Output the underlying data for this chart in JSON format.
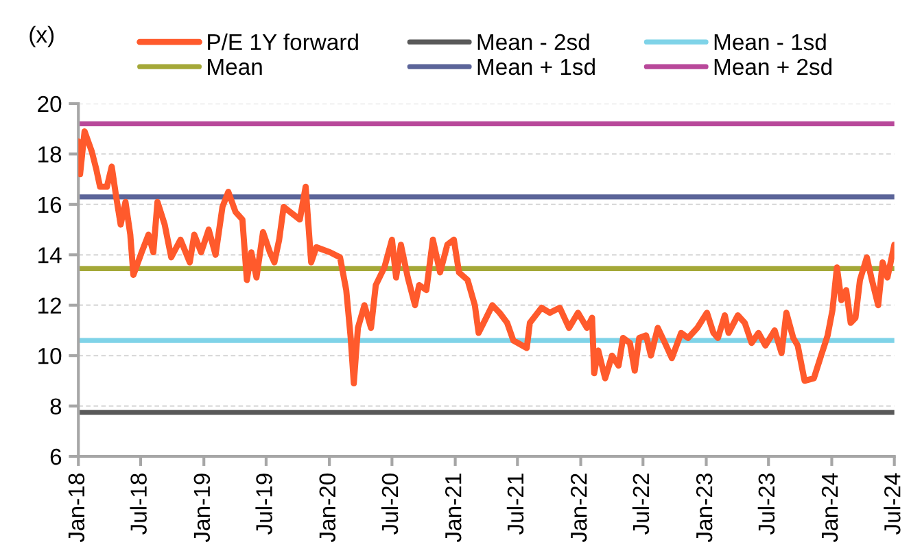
{
  "chart_data": {
    "type": "line",
    "ylabel": "(x)",
    "xlim": [
      "2018-01-01",
      "2024-07-01"
    ],
    "xticks": [
      {
        "value": "2018-01-01",
        "label": "Jan-18"
      },
      {
        "value": "2018-07-01",
        "label": "Jul-18"
      },
      {
        "value": "2019-01-01",
        "label": "Jan-19"
      },
      {
        "value": "2019-07-01",
        "label": "Jul-19"
      },
      {
        "value": "2020-01-01",
        "label": "Jan-20"
      },
      {
        "value": "2020-07-01",
        "label": "Jul-20"
      },
      {
        "value": "2021-01-01",
        "label": "Jan-21"
      },
      {
        "value": "2021-07-01",
        "label": "Jul-21"
      },
      {
        "value": "2022-01-01",
        "label": "Jan-22"
      },
      {
        "value": "2022-07-01",
        "label": "Jul-22"
      },
      {
        "value": "2023-01-01",
        "label": "Jan-23"
      },
      {
        "value": "2023-07-01",
        "label": "Jul-23"
      },
      {
        "value": "2024-01-01",
        "label": "Jan-24"
      },
      {
        "value": "2024-07-01",
        "label": "Jul-24"
      }
    ],
    "ylim": [
      6,
      20
    ],
    "yticks": [
      6,
      8,
      10,
      12,
      14,
      16,
      18,
      20
    ],
    "grid": "y",
    "legend": "top",
    "marker": "none",
    "line_style": "solid",
    "series": [
      {
        "name": "P/E 1Y forward",
        "color": "#ff5a2c",
        "x": [
          "2018-01-01",
          "2018-01-06",
          "2018-01-19",
          "2018-02-09",
          "2018-02-22",
          "2018-03-05",
          "2018-03-25",
          "2018-04-08",
          "2018-04-21",
          "2018-05-04",
          "2018-05-18",
          "2018-06-01",
          "2018-06-10",
          "2018-07-04",
          "2018-07-24",
          "2018-08-07",
          "2018-08-19",
          "2018-09-09",
          "2018-09-28",
          "2018-10-25",
          "2018-11-21",
          "2018-12-04",
          "2018-12-24",
          "2019-01-15",
          "2019-02-04",
          "2019-02-24",
          "2019-03-13",
          "2019-04-03",
          "2019-04-23",
          "2019-05-06",
          "2019-05-19",
          "2019-06-03",
          "2019-06-22",
          "2019-07-12",
          "2019-07-25",
          "2019-08-08",
          "2019-08-21",
          "2019-09-18",
          "2019-10-07",
          "2019-10-24",
          "2019-11-09",
          "2019-11-24",
          "2020-01-03",
          "2020-02-01",
          "2020-02-19",
          "2020-03-03",
          "2020-03-12",
          "2020-03-24",
          "2020-04-12",
          "2020-05-01",
          "2020-05-15",
          "2020-06-09",
          "2020-07-01",
          "2020-07-13",
          "2020-07-27",
          "2020-08-16",
          "2020-09-06",
          "2020-09-18",
          "2020-10-09",
          "2020-10-28",
          "2020-11-18",
          "2020-12-09",
          "2020-12-28",
          "2021-01-12",
          "2021-02-06",
          "2021-02-27",
          "2021-03-10",
          "2021-04-01",
          "2021-04-19",
          "2021-05-10",
          "2021-06-01",
          "2021-06-19",
          "2021-07-28",
          "2021-08-06",
          "2021-09-09",
          "2021-10-03",
          "2021-11-01",
          "2021-11-28",
          "2021-12-24",
          "2022-01-19",
          "2022-02-03",
          "2022-02-09",
          "2022-02-21",
          "2022-03-13",
          "2022-04-02",
          "2022-04-21",
          "2022-05-04",
          "2022-05-24",
          "2022-06-07",
          "2022-06-20",
          "2022-07-10",
          "2022-07-24",
          "2022-08-13",
          "2022-09-03",
          "2022-09-23",
          "2022-10-20",
          "2022-11-09",
          "2022-12-06",
          "2023-01-03",
          "2023-01-22",
          "2023-02-04",
          "2023-02-24",
          "2023-03-07",
          "2023-04-03",
          "2023-04-23",
          "2023-05-13",
          "2023-06-02",
          "2023-06-22",
          "2023-07-19",
          "2023-08-08",
          "2023-08-22",
          "2023-09-11",
          "2023-09-24",
          "2023-10-14",
          "2023-11-10",
          "2023-12-01",
          "2023-12-20",
          "2024-01-03",
          "2024-01-16",
          "2024-01-29",
          "2024-02-12",
          "2024-02-25",
          "2024-03-10",
          "2024-03-23",
          "2024-04-12",
          "2024-04-25",
          "2024-05-15",
          "2024-05-28",
          "2024-06-11",
          "2024-07-01"
        ],
        "values": [
          18.5,
          17.2,
          18.9,
          18.1,
          17.4,
          16.7,
          16.7,
          17.5,
          16.3,
          15.2,
          16.1,
          14.8,
          13.2,
          14.1,
          14.8,
          14.1,
          16.1,
          15.2,
          13.9,
          14.6,
          13.7,
          14.8,
          14.1,
          15.0,
          14.0,
          15.9,
          16.5,
          15.7,
          15.4,
          13.0,
          14.1,
          13.1,
          14.9,
          14.1,
          13.7,
          14.6,
          15.9,
          15.6,
          15.4,
          16.7,
          13.7,
          14.3,
          14.1,
          13.9,
          12.6,
          10.7,
          8.9,
          11.1,
          12.0,
          11.1,
          12.8,
          13.5,
          14.6,
          13.1,
          14.4,
          13.1,
          12.0,
          12.8,
          12.6,
          14.6,
          13.3,
          14.4,
          14.6,
          13.3,
          13.0,
          12.0,
          10.9,
          11.5,
          12.0,
          11.7,
          11.3,
          10.6,
          10.3,
          11.3,
          11.9,
          11.7,
          11.9,
          11.1,
          11.7,
          11.1,
          11.5,
          9.3,
          10.2,
          9.1,
          10.0,
          9.6,
          10.7,
          10.5,
          9.4,
          10.7,
          10.8,
          10.0,
          11.1,
          10.5,
          9.9,
          10.9,
          10.7,
          11.1,
          11.7,
          10.9,
          10.7,
          11.6,
          10.9,
          11.6,
          11.3,
          10.5,
          10.9,
          10.4,
          11.0,
          10.1,
          11.7,
          10.7,
          10.4,
          9.0,
          9.1,
          10.0,
          10.8,
          11.8,
          13.5,
          12.2,
          12.6,
          11.3,
          11.5,
          13.0,
          13.9,
          13.1,
          12.0,
          13.7,
          13.1,
          14.4
        ]
      },
      {
        "name": "Mean - 2sd",
        "color": "#595959",
        "x": [
          "2018-01-01",
          "2024-07-01"
        ],
        "values": [
          7.75,
          7.75
        ]
      },
      {
        "name": "Mean - 1sd",
        "color": "#7fd3e8",
        "x": [
          "2018-01-01",
          "2024-07-01"
        ],
        "values": [
          10.6,
          10.6
        ]
      },
      {
        "name": "Mean",
        "color": "#a4a838",
        "x": [
          "2018-01-01",
          "2024-07-01"
        ],
        "values": [
          13.45,
          13.45
        ]
      },
      {
        "name": "Mean + 1sd",
        "color": "#5b6499",
        "x": [
          "2018-01-01",
          "2024-07-01"
        ],
        "values": [
          16.3,
          16.3
        ]
      },
      {
        "name": "Mean + 2sd",
        "color": "#b8489a",
        "x": [
          "2018-01-01",
          "2024-07-01"
        ],
        "values": [
          19.2,
          19.2
        ]
      }
    ]
  }
}
